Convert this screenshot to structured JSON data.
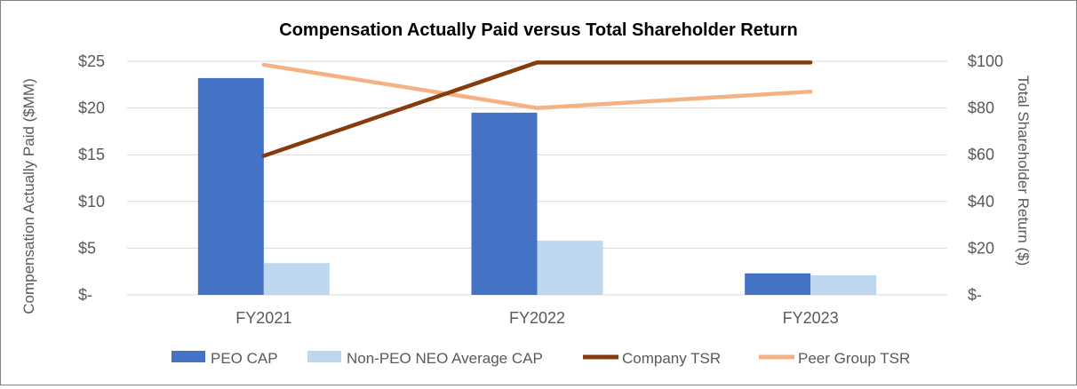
{
  "chart_data": {
    "type": "bar",
    "title": "Compensation  Actually Paid versus Total Shareholder Return",
    "categories": [
      "FY2021",
      "FY2022",
      "FY2023"
    ],
    "y_left": {
      "label": "Compensation Actually Paid ($MM)",
      "range": [
        0,
        25
      ],
      "ticks": [
        {
          "value": 0,
          "label": "$-"
        },
        {
          "value": 5,
          "label": "$5"
        },
        {
          "value": 10,
          "label": "$10"
        },
        {
          "value": 15,
          "label": "$15"
        },
        {
          "value": 20,
          "label": "$20"
        },
        {
          "value": 25,
          "label": "$25"
        }
      ]
    },
    "y_right": {
      "label": "Total Shareholder Return ($)",
      "range": [
        0,
        100
      ],
      "ticks": [
        {
          "value": 0,
          "label": "$-"
        },
        {
          "value": 20,
          "label": "$20"
        },
        {
          "value": 40,
          "label": "$40"
        },
        {
          "value": 60,
          "label": "$60"
        },
        {
          "value": 80,
          "label": "$80"
        },
        {
          "value": 100,
          "label": "$100"
        }
      ]
    },
    "bar_series": [
      {
        "name": "PEO CAP",
        "values": [
          23.2,
          19.5,
          2.3
        ],
        "color": "#4472c4",
        "axis": "left"
      },
      {
        "name": "Non-PEO NEO Average CAP",
        "values": [
          3.4,
          5.8,
          2.1
        ],
        "color": "#bdd7ee",
        "axis": "left"
      }
    ],
    "line_series": [
      {
        "name": "Company TSR",
        "values": [
          59.5,
          99.5,
          99.5
        ],
        "color": "#843c0c",
        "axis": "right"
      },
      {
        "name": "Peer Group TSR",
        "values": [
          98.5,
          80,
          87
        ],
        "color": "#f4b183",
        "axis": "right"
      }
    ],
    "gridlines": true,
    "legend_position": "bottom"
  }
}
